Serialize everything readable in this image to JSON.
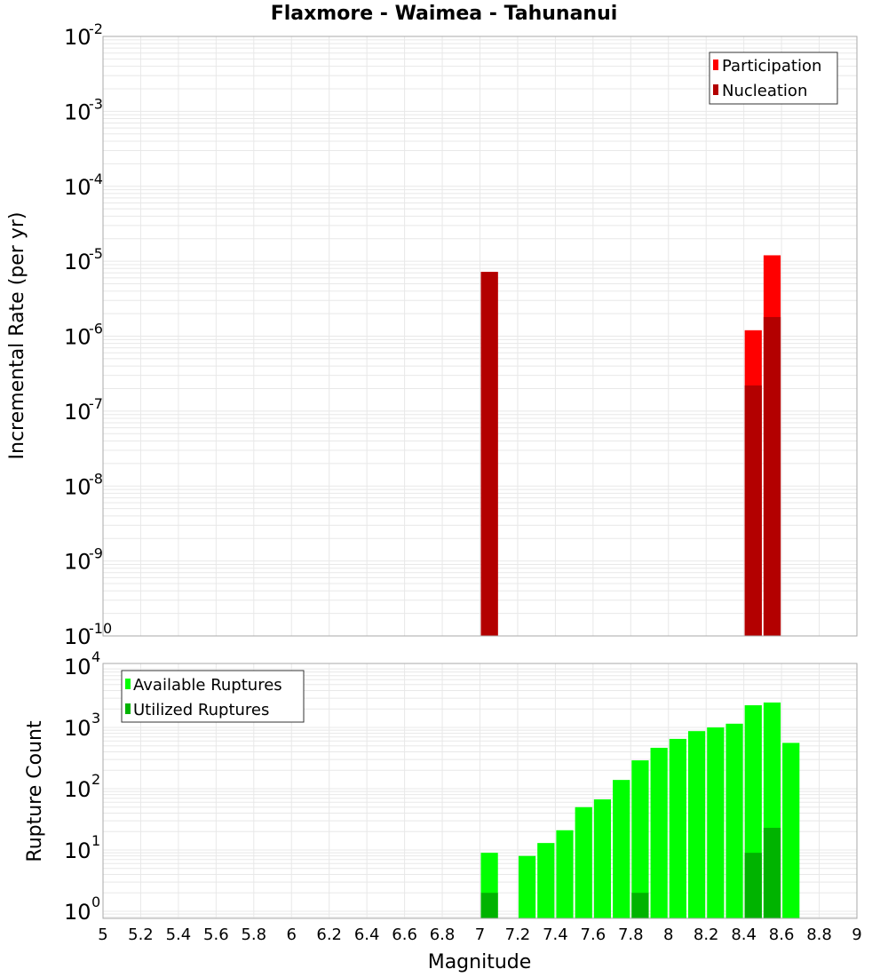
{
  "chart_data": [
    {
      "type": "bar",
      "title": "Flaxmore - Waimea - Tahunanui",
      "xlabel": "Magnitude",
      "ylabel": "Incremental Rate (per yr)",
      "yscale": "log",
      "ylim": [
        1e-10,
        0.01
      ],
      "xlim": [
        5,
        9
      ],
      "grid": true,
      "legend_position": "top-right",
      "y_ticks": [
        -2,
        -3,
        -4,
        -5,
        -6,
        -7,
        -8,
        -9,
        -10
      ],
      "bin_width": 0.1,
      "series": [
        {
          "name": "Participation",
          "color": "#ff0000",
          "x": [
            7.05,
            8.45,
            8.55
          ],
          "values": [
            7.2e-06,
            1.2e-06,
            1.2e-05
          ]
        },
        {
          "name": "Nucleation",
          "color": "#b30000",
          "x": [
            7.05,
            8.45,
            8.55
          ],
          "values": [
            7.2e-06,
            2.2e-07,
            1.8e-06
          ]
        }
      ]
    },
    {
      "type": "bar",
      "xlabel": "Magnitude",
      "ylabel": "Rupture Count",
      "yscale": "log",
      "ylim": [
        0.75,
        10000.0
      ],
      "xlim": [
        5,
        9
      ],
      "grid": true,
      "legend_position": "top-left",
      "y_ticks": [
        4,
        3,
        2,
        1,
        0
      ],
      "bin_width": 0.1,
      "series": [
        {
          "name": "Available Ruptures",
          "color": "#00ff00",
          "x": [
            7.05,
            7.25,
            7.35,
            7.45,
            7.55,
            7.65,
            7.75,
            7.85,
            7.95,
            8.05,
            8.15,
            8.25,
            8.35,
            8.45,
            8.55,
            8.65
          ],
          "values": [
            9,
            8,
            13,
            21,
            50,
            67,
            139,
            290,
            465,
            650,
            870,
            1000,
            1150,
            2300,
            2550,
            560
          ]
        },
        {
          "name": "Utilized Ruptures",
          "color": "#00b300",
          "x": [
            7.05,
            7.85,
            8.45,
            8.55
          ],
          "values": [
            2,
            2,
            9,
            23
          ]
        }
      ]
    }
  ],
  "x_ticks": [
    "5",
    "5.2",
    "5.4",
    "5.6",
    "5.8",
    "6",
    "6.2",
    "6.4",
    "6.6",
    "6.8",
    "7",
    "7.2",
    "7.4",
    "7.6",
    "7.8",
    "8",
    "8.2",
    "8.4",
    "8.6",
    "8.8",
    "9"
  ],
  "labels": {
    "title": "Flaxmore - Waimea - Tahunanui",
    "top_ylabel": "Incremental Rate (per yr)",
    "bottom_ylabel": "Rupture Count",
    "xlabel": "Magnitude",
    "legend_top": [
      "Participation",
      "Nucleation"
    ],
    "legend_bottom": [
      "Available Ruptures",
      "Utilized Ruptures"
    ]
  }
}
